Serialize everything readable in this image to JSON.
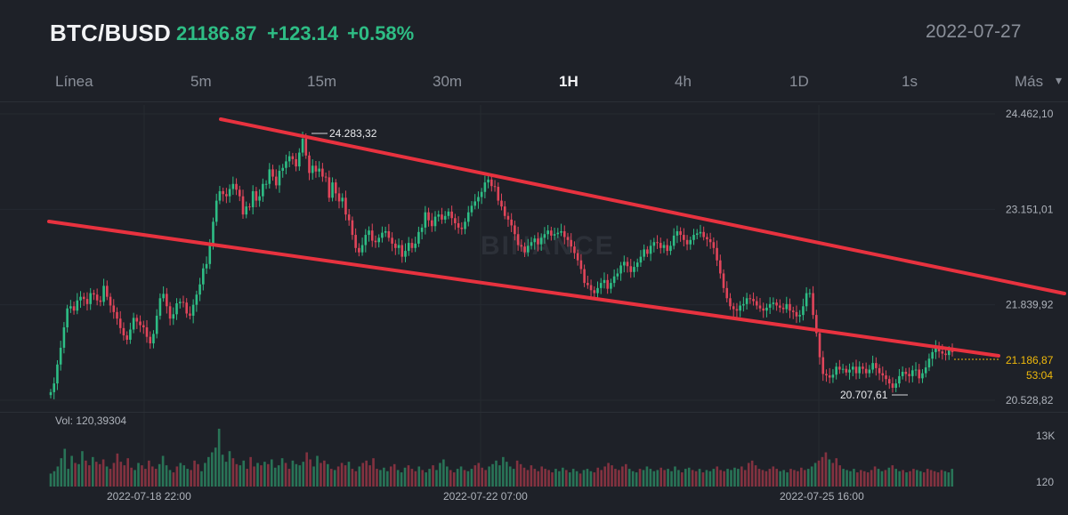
{
  "header": {
    "pair": "BTC/BUSD",
    "price": "21186.87",
    "change": "+123.14",
    "change_pct": "+0.58%",
    "date": "2022-07-27"
  },
  "tabs": [
    "Línea",
    "5m",
    "15m",
    "30m",
    "1H",
    "4h",
    "1D",
    "1s",
    "Más"
  ],
  "active_tab": "1H",
  "colors": {
    "up": "#2ebd85",
    "down": "#e0455a",
    "trendline": "#e8323f",
    "last_price": "#f0b90b",
    "background": "#1e2128"
  },
  "watermark": "BINANCE",
  "volume": {
    "label": "Vol: 120,39304"
  },
  "chart_data": {
    "type": "candlestick",
    "interval": "1H",
    "y_ticks": [
      "24.462,10",
      "23.151,01",
      "21.839,92",
      "20.528,82"
    ],
    "y_tick_values": [
      24462.1,
      23151.01,
      21839.92,
      20528.82
    ],
    "x_ticks": [
      "2022-07-18 22:00",
      "2022-07-22 07:00",
      "2022-07-25 16:00"
    ],
    "volume_ticks": [
      "13K",
      "120"
    ],
    "high_label": "24.283,32",
    "low_label": "20.707,61",
    "last_price_label": "21.186,87",
    "countdown": "53:04",
    "closes": [
      20640,
      20760,
      21020,
      21250,
      21530,
      21790,
      21820,
      21760,
      21900,
      21950,
      21920,
      21850,
      22000,
      21980,
      21900,
      21880,
      22100,
      21950,
      21830,
      21740,
      21650,
      21520,
      21420,
      21360,
      21500,
      21660,
      21610,
      21560,
      21530,
      21400,
      21310,
      21440,
      21690,
      21930,
      21990,
      21820,
      21650,
      21710,
      21860,
      21880,
      21870,
      21720,
      21690,
      21840,
      21980,
      22120,
      22340,
      22400,
      22660,
      22980,
      23270,
      23400,
      23360,
      23330,
      23430,
      23500,
      23420,
      23330,
      23080,
      23190,
      23180,
      23400,
      23270,
      23330,
      23500,
      23500,
      23700,
      23600,
      23480,
      23680,
      23720,
      23810,
      23880,
      23840,
      23740,
      23930,
      24120,
      23890,
      23650,
      23750,
      23670,
      23710,
      23600,
      23590,
      23310,
      23520,
      23370,
      23260,
      23310,
      23080,
      23000,
      22800,
      22620,
      22560,
      22660,
      22800,
      22860,
      22720,
      22700,
      22760,
      22830,
      22850,
      22760,
      22680,
      22620,
      22660,
      22500,
      22580,
      22690,
      22620,
      22680,
      22840,
      22900,
      23110,
      23000,
      22920,
      23050,
      23080,
      23010,
      23060,
      23120,
      23030,
      22960,
      22900,
      22880,
      22980,
      23110,
      23200,
      23260,
      23320,
      23390,
      23520,
      23560,
      23470,
      23460,
      23270,
      23190,
      23060,
      23010,
      22930,
      22810,
      22660,
      22640,
      22560,
      22650,
      22700,
      22750,
      22670,
      22760,
      22810,
      22860,
      22790,
      22810,
      22830,
      22850,
      22770,
      22730,
      22640,
      22550,
      22450,
      22330,
      22140,
      22110,
      22040,
      22000,
      22070,
      22140,
      22180,
      22060,
      22140,
      22230,
      22270,
      22380,
      22430,
      22370,
      22290,
      22360,
      22420,
      22500,
      22600,
      22540,
      22650,
      22700,
      22690,
      22620,
      22660,
      22580,
      22650,
      22790,
      22850,
      22800,
      22730,
      22670,
      22730,
      22800,
      22820,
      22840,
      22770,
      22740,
      22700,
      22620,
      22450,
      22270,
      22070,
      21930,
      21820,
      21780,
      21760,
      21830,
      21850,
      21930,
      21920,
      21890,
      21830,
      21790,
      21760,
      21800,
      21850,
      21870,
      21830,
      21800,
      21780,
      21850,
      21760,
      21740,
      21680,
      21700,
      21820,
      22000,
      22000,
      21700,
      21450,
      21120,
      20890,
      20870,
      20840,
      20880,
      20990,
      20950,
      20960,
      20910,
      20950,
      20990,
      20900,
      20990,
      20960,
      20900,
      20950,
      21040,
      20970,
      20900,
      20870,
      20820,
      20760,
      20700,
      20760,
      20860,
      20920,
      20890,
      20860,
      20940,
      20950,
      20830,
      20900,
      20980,
      21100,
      21190,
      21270,
      21200,
      21170,
      21150,
      21220,
      21190
    ],
    "volumes": [
      22,
      26,
      34,
      48,
      64,
      30,
      52,
      40,
      38,
      60,
      44,
      36,
      50,
      42,
      38,
      46,
      34,
      30,
      40,
      56,
      42,
      36,
      48,
      32,
      28,
      40,
      36,
      30,
      44,
      34,
      30,
      38,
      52,
      36,
      28,
      24,
      34,
      40,
      36,
      30,
      28,
      44,
      38,
      26,
      40,
      50,
      58,
      66,
      98,
      54,
      42,
      60,
      48,
      38,
      36,
      44,
      30,
      50,
      34,
      40,
      36,
      42,
      38,
      46,
      32,
      36,
      48,
      40,
      30,
      44,
      38,
      36,
      42,
      58,
      46,
      34,
      52,
      40,
      44,
      38,
      30,
      28,
      34,
      40,
      36,
      42,
      30,
      26,
      34,
      40,
      44,
      36,
      48,
      30,
      28,
      32,
      26,
      34,
      38,
      28,
      24,
      32,
      36,
      30,
      26,
      34,
      28,
      24,
      30,
      36,
      28,
      40,
      46,
      34,
      28,
      24,
      30,
      34,
      28,
      26,
      30,
      36,
      40,
      32,
      28,
      34,
      38,
      44,
      36,
      50,
      42,
      34,
      30,
      44,
      38,
      32,
      28,
      36,
      30,
      26,
      34,
      30,
      28,
      24,
      30,
      26,
      32,
      28,
      24,
      30,
      26,
      22,
      28,
      30,
      26,
      24,
      32,
      28,
      34,
      40,
      36,
      30,
      28,
      34,
      38,
      30,
      26,
      24,
      30,
      28,
      34,
      30,
      26,
      28,
      32,
      28,
      30,
      26,
      34,
      28,
      24,
      30,
      32,
      28,
      26,
      30,
      24,
      28,
      26,
      30,
      34,
      28,
      26,
      30,
      28,
      32,
      30,
      34,
      28,
      40,
      44,
      36,
      30,
      28,
      26,
      30,
      34,
      30,
      26,
      28,
      24,
      30,
      28,
      26,
      32,
      28,
      30,
      34,
      40,
      44,
      50,
      58,
      46,
      40,
      48,
      36,
      30,
      28,
      26,
      30,
      24,
      28,
      26,
      24,
      28,
      34,
      30,
      26,
      28,
      32,
      36,
      30,
      26,
      28,
      24,
      26,
      30,
      28,
      26,
      24,
      30,
      28,
      26,
      24,
      28,
      26,
      24,
      30
    ]
  }
}
